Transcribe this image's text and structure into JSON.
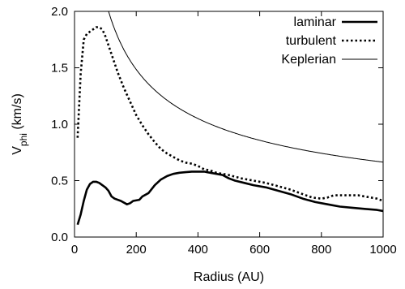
{
  "chart_data": {
    "type": "line",
    "title": "",
    "xlabel": "Radius (AU)",
    "ylabel": {
      "main": "V",
      "sub": "phi",
      "rest": " (km/s)"
    },
    "xlim": [
      0,
      1000
    ],
    "ylim": [
      0,
      2.0
    ],
    "x_ticks": [
      0,
      200,
      400,
      600,
      800,
      1000
    ],
    "y_ticks": [
      0.0,
      0.5,
      1.0,
      1.5,
      2.0
    ],
    "x_tick_labels": [
      "0",
      "200",
      "400",
      "600",
      "800",
      "1000"
    ],
    "y_tick_labels": [
      "0.0",
      "0.5",
      "1.0",
      "1.5",
      "2.0"
    ],
    "grid": false,
    "legend_position": "top-right",
    "series": [
      {
        "name": "laminar",
        "style": "solid-thick",
        "color": "#000000",
        "points": [
          [
            10,
            0.11
          ],
          [
            20,
            0.2
          ],
          [
            30,
            0.32
          ],
          [
            40,
            0.42
          ],
          [
            50,
            0.47
          ],
          [
            60,
            0.49
          ],
          [
            70,
            0.49
          ],
          [
            80,
            0.48
          ],
          [
            90,
            0.46
          ],
          [
            100,
            0.44
          ],
          [
            110,
            0.41
          ],
          [
            120,
            0.36
          ],
          [
            130,
            0.34
          ],
          [
            150,
            0.32
          ],
          [
            170,
            0.29
          ],
          [
            180,
            0.3
          ],
          [
            190,
            0.32
          ],
          [
            210,
            0.33
          ],
          [
            220,
            0.36
          ],
          [
            240,
            0.39
          ],
          [
            260,
            0.46
          ],
          [
            280,
            0.51
          ],
          [
            300,
            0.54
          ],
          [
            320,
            0.56
          ],
          [
            340,
            0.57
          ],
          [
            360,
            0.575
          ],
          [
            380,
            0.58
          ],
          [
            400,
            0.58
          ],
          [
            420,
            0.58
          ],
          [
            440,
            0.57
          ],
          [
            460,
            0.56
          ],
          [
            480,
            0.55
          ],
          [
            500,
            0.52
          ],
          [
            520,
            0.5
          ],
          [
            550,
            0.48
          ],
          [
            580,
            0.46
          ],
          [
            620,
            0.44
          ],
          [
            660,
            0.41
          ],
          [
            700,
            0.38
          ],
          [
            740,
            0.34
          ],
          [
            780,
            0.31
          ],
          [
            820,
            0.29
          ],
          [
            860,
            0.27
          ],
          [
            900,
            0.26
          ],
          [
            940,
            0.25
          ],
          [
            980,
            0.24
          ],
          [
            1000,
            0.23
          ]
        ]
      },
      {
        "name": "turbulent",
        "style": "dotted",
        "color": "#000000",
        "points": [
          [
            10,
            0.88
          ],
          [
            20,
            1.45
          ],
          [
            30,
            1.75
          ],
          [
            40,
            1.8
          ],
          [
            50,
            1.82
          ],
          [
            60,
            1.84
          ],
          [
            70,
            1.86
          ],
          [
            80,
            1.86
          ],
          [
            90,
            1.84
          ],
          [
            100,
            1.78
          ],
          [
            120,
            1.62
          ],
          [
            140,
            1.46
          ],
          [
            160,
            1.32
          ],
          [
            180,
            1.2
          ],
          [
            200,
            1.08
          ],
          [
            220,
            0.99
          ],
          [
            240,
            0.91
          ],
          [
            260,
            0.84
          ],
          [
            280,
            0.78
          ],
          [
            300,
            0.74
          ],
          [
            320,
            0.71
          ],
          [
            340,
            0.68
          ],
          [
            360,
            0.66
          ],
          [
            380,
            0.65
          ],
          [
            400,
            0.63
          ],
          [
            420,
            0.6
          ],
          [
            440,
            0.59
          ],
          [
            460,
            0.57
          ],
          [
            480,
            0.56
          ],
          [
            500,
            0.55
          ],
          [
            540,
            0.52
          ],
          [
            580,
            0.5
          ],
          [
            620,
            0.48
          ],
          [
            660,
            0.45
          ],
          [
            700,
            0.42
          ],
          [
            740,
            0.38
          ],
          [
            770,
            0.35
          ],
          [
            800,
            0.34
          ],
          [
            820,
            0.35
          ],
          [
            840,
            0.37
          ],
          [
            860,
            0.37
          ],
          [
            880,
            0.37
          ],
          [
            900,
            0.37
          ],
          [
            920,
            0.37
          ],
          [
            940,
            0.36
          ],
          [
            960,
            0.35
          ],
          [
            980,
            0.34
          ],
          [
            1000,
            0.32
          ]
        ]
      },
      {
        "name": "Keplerian",
        "style": "solid-thin",
        "color": "#000000",
        "function": "2.1*sqrt(100/x)",
        "x_range": [
          110,
          1000
        ]
      }
    ]
  }
}
